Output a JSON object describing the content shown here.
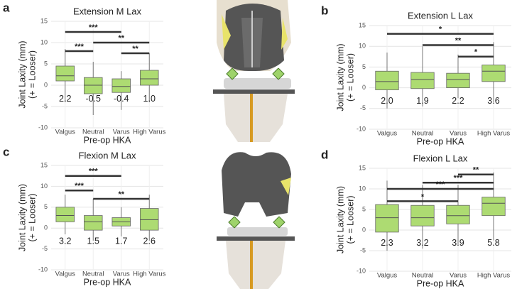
{
  "chart_data": [
    {
      "type": "box",
      "letter": "a",
      "title": "Extension M Lax",
      "x_label": "Pre-op HKA",
      "y_label": [
        "Joint Laxity (mm)",
        "(+ = Looser)"
      ],
      "categories": [
        "Valgus",
        "Neutral",
        "Varus",
        "High Varus"
      ],
      "boxes": [
        {
          "whisker_low": -4,
          "q1": 1,
          "median": 2.2,
          "q3": 4.5,
          "whisker_high": 8.5
        },
        {
          "whisker_low": -7,
          "q1": -2,
          "median": 0,
          "q3": 1.8,
          "whisker_high": 5.5
        },
        {
          "whisker_low": -5.8,
          "q1": -1.7,
          "median": -0.3,
          "q3": 1.5,
          "whisker_high": 3.3
        },
        {
          "whisker_low": -4,
          "q1": 0,
          "median": 1.5,
          "q3": 3.5,
          "whisker_high": 7.5
        }
      ],
      "values": [
        2.2,
        -0.5,
        -0.4,
        1.0
      ],
      "value_labels": [
        "2.2",
        "-0.5",
        "-0.4",
        "1.0"
      ],
      "annotations": [
        {
          "text": "***",
          "from": "Valgus",
          "to": "Varus",
          "y": 12.5
        },
        {
          "text": "**",
          "from": "Neutral",
          "to": "High Varus",
          "y": 10
        },
        {
          "text": "***",
          "from": "Valgus",
          "to": "Neutral",
          "y": 8
        },
        {
          "text": "**",
          "from": "Varus",
          "to": "High Varus",
          "y": 7.5
        }
      ],
      "ylim": [
        -10,
        15
      ],
      "yticks": [
        -10,
        -5,
        0,
        5,
        10,
        15
      ],
      "grid": true,
      "color": "#addb72"
    },
    {
      "type": "box",
      "letter": "b",
      "title": "Extension L Lax",
      "x_label": "Pre-op HKA",
      "y_label": [
        "Joint Laxity (mm)",
        "(+ = Looser)"
      ],
      "categories": [
        "Valgus",
        "Neutral",
        "Varus",
        "High Varus"
      ],
      "boxes": [
        {
          "whisker_low": -5,
          "q1": -0.5,
          "median": 1.5,
          "q3": 4,
          "whisker_high": 8.5
        },
        {
          "whisker_low": -4.5,
          "q1": -0.2,
          "median": 2,
          "q3": 3.7,
          "whisker_high": 10
        },
        {
          "whisker_low": -2.5,
          "q1": 0,
          "median": 2,
          "q3": 3.5,
          "whisker_high": 8
        },
        {
          "whisker_low": -3.5,
          "q1": 1.5,
          "median": 4,
          "q3": 5.5,
          "whisker_high": 11
        }
      ],
      "values": [
        2.0,
        1.9,
        2.2,
        3.6
      ],
      "value_labels": [
        "2.0",
        "1.9",
        "2.2",
        "3.6"
      ],
      "annotations": [
        {
          "text": "*",
          "from": "Valgus",
          "to": "High Varus",
          "y": 13
        },
        {
          "text": "**",
          "from": "Neutral",
          "to": "High Varus",
          "y": 10.3
        },
        {
          "text": "*",
          "from": "Varus",
          "to": "High Varus",
          "y": 7.5
        }
      ],
      "ylim": [
        -10,
        15
      ],
      "yticks": [
        -10,
        -5,
        0,
        5,
        10,
        15
      ],
      "grid": true,
      "color": "#addb72"
    },
    {
      "type": "box",
      "letter": "c",
      "title": "Flexion M Lax",
      "x_label": "Pre-op HKA",
      "y_label": [
        "Joint Laxity (mm)",
        "(+ = Looser)"
      ],
      "categories": [
        "Valgus",
        "Neutral",
        "Varus",
        "High Varus"
      ],
      "boxes": [
        {
          "whisker_low": -1.5,
          "q1": 1.5,
          "median": 3,
          "q3": 5,
          "whisker_high": 8
        },
        {
          "whisker_low": -3,
          "q1": -0.5,
          "median": 1.5,
          "q3": 3,
          "whisker_high": 7
        },
        {
          "whisker_low": -2,
          "q1": 0.5,
          "median": 1.5,
          "q3": 2.5,
          "whisker_high": 5
        },
        {
          "whisker_low": -3,
          "q1": -0.5,
          "median": 2,
          "q3": 4.7,
          "whisker_high": 8
        }
      ],
      "values": [
        3.2,
        1.5,
        1.7,
        2.6
      ],
      "value_labels": [
        "3.2",
        "1.5",
        "1.7",
        "2.6"
      ],
      "annotations": [
        {
          "text": "***",
          "from": "Valgus",
          "to": "Varus",
          "y": 12.5
        },
        {
          "text": "***",
          "from": "Valgus",
          "to": "Neutral",
          "y": 9
        },
        {
          "text": "**",
          "from": "Neutral",
          "to": "High Varus",
          "y": 7
        }
      ],
      "ylim": [
        -10,
        15
      ],
      "yticks": [
        -10,
        -5,
        0,
        5,
        10,
        15
      ],
      "grid": true,
      "color": "#addb72"
    },
    {
      "type": "box",
      "letter": "d",
      "title": "Flexion L Lax",
      "x_label": "Pre-op HKA",
      "y_label": [
        "Joint Laxity (mm)",
        "(+ = Looser)"
      ],
      "categories": [
        "Valgus",
        "Neutral",
        "Varus",
        "High Varus"
      ],
      "boxes": [
        {
          "whisker_low": -5,
          "q1": -0.5,
          "median": 3,
          "q3": 6.2,
          "whisker_high": 12
        },
        {
          "whisker_low": -4.5,
          "q1": 1,
          "median": 3,
          "q3": 6,
          "whisker_high": 11
        },
        {
          "whisker_low": -3.5,
          "q1": 1.5,
          "median": 3.5,
          "q3": 6,
          "whisker_high": 11
        },
        {
          "whisker_low": -2.5,
          "q1": 3.5,
          "median": 6.5,
          "q3": 8,
          "whisker_high": 14
        }
      ],
      "values": [
        2.3,
        3.2,
        3.9,
        5.8
      ],
      "value_labels": [
        "2.3",
        "3.2",
        "3.9",
        "5.8"
      ],
      "annotations": [
        {
          "text": "**",
          "from": "Varus",
          "to": "High Varus",
          "y": 13.5
        },
        {
          "text": "***",
          "from": "Neutral",
          "to": "High Varus",
          "y": 11.5
        },
        {
          "text": "***",
          "from": "Valgus",
          "to": "High Varus",
          "y": 10
        },
        {
          "text": "*",
          "from": "Valgus",
          "to": "Varus",
          "y": 7
        }
      ],
      "ylim": [
        -10,
        15
      ],
      "yticks": [
        -10,
        -5,
        0,
        5,
        10,
        15
      ],
      "grid": true,
      "color": "#addb72"
    }
  ]
}
